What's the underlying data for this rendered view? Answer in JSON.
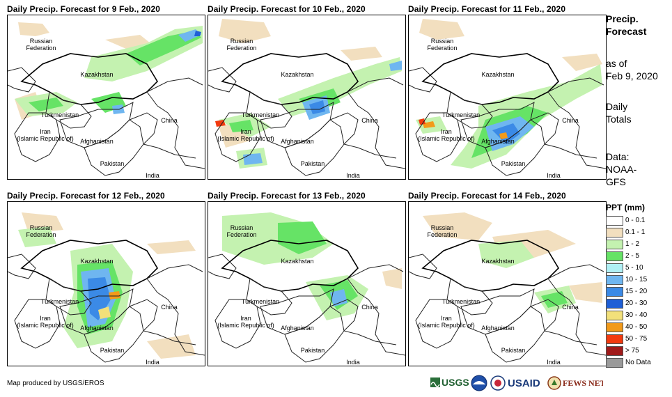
{
  "panels": [
    {
      "title": "Daily Precip. Forecast for 9 Feb., 2020"
    },
    {
      "title": "Daily Precip. Forecast for 10 Feb., 2020"
    },
    {
      "title": "Daily Precip. Forecast for 11 Feb., 2020"
    },
    {
      "title": "Daily Precip. Forecast for 12 Feb., 2020"
    },
    {
      "title": "Daily Precip. Forecast for 13 Feb., 2020"
    },
    {
      "title": "Daily Precip. Forecast for 14 Feb., 2020"
    }
  ],
  "map_labels": {
    "russia": "Russian\nFederation",
    "kazakhstan": "Kazakhstan",
    "turkmenistan": "Turkmenistan",
    "china": "China",
    "iran": "Iran\n(Islamic Republic of)",
    "afghanistan": "Afghanistan",
    "pakistan": "Pakistan",
    "india": "India"
  },
  "side_info": {
    "heading_line1": "Precip.",
    "heading_line2": "Forecast",
    "as_of_line1": "as of",
    "as_of_line2": "Feb 9, 2020",
    "daily_line1": "Daily",
    "daily_line2": "Totals",
    "data_line1": "Data:",
    "data_line2": "NOAA-",
    "data_line3": "GFS"
  },
  "legend": {
    "title": "PPT (mm)",
    "items": [
      {
        "label": "0 - 0.1",
        "color": "#ffffff"
      },
      {
        "label": "0.1 - 1",
        "color": "#f2dfbf"
      },
      {
        "label": "1 - 2",
        "color": "#c4f2b0"
      },
      {
        "label": "2 - 5",
        "color": "#66e366"
      },
      {
        "label": "5 - 10",
        "color": "#b0f0f5"
      },
      {
        "label": "10 - 15",
        "color": "#6fb6f0"
      },
      {
        "label": "15 - 20",
        "color": "#3b8ae6"
      },
      {
        "label": "20 - 30",
        "color": "#1f5fd6"
      },
      {
        "label": "30 - 40",
        "color": "#f2e07a"
      },
      {
        "label": "40 - 50",
        "color": "#f29a1a"
      },
      {
        "label": "50 - 75",
        "color": "#f23a0f"
      },
      {
        "label": "> 75",
        "color": "#a01a1a"
      },
      {
        "label": "No Data",
        "color": "#9a9a9a"
      }
    ]
  },
  "footer": {
    "credit": "Map produced by USGS/EROS",
    "logo_usgs": "USGS",
    "logo_usaid": "USAID",
    "logo_fewsnet": "FEWS NET"
  }
}
